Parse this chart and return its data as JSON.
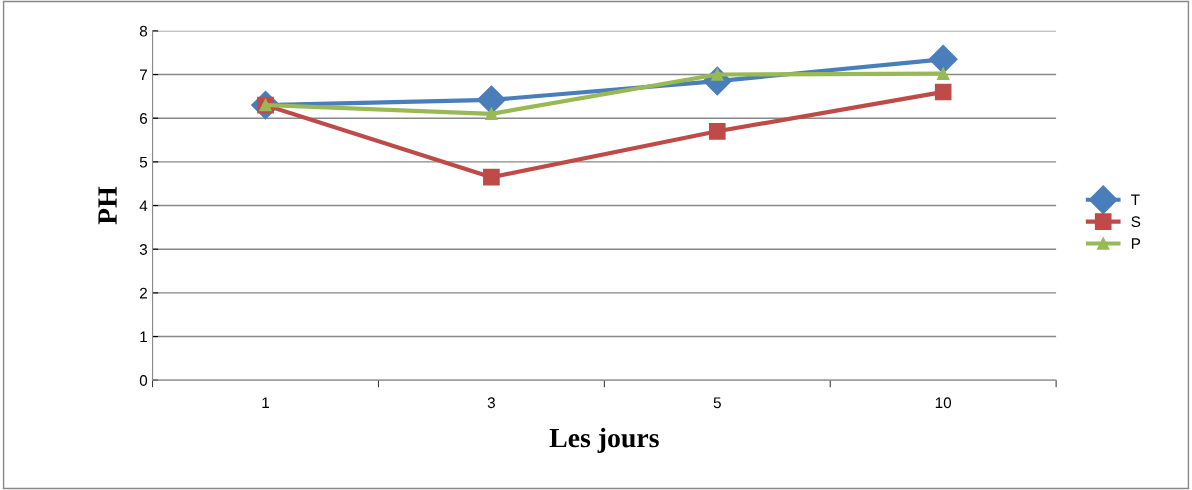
{
  "chart_data": {
    "type": "line",
    "xlabel": "Les jours",
    "ylabel": "PH",
    "categories": [
      "1",
      "3",
      "5",
      "10"
    ],
    "series": [
      {
        "name": "T",
        "color": "#4a7ebb",
        "marker": "diamond",
        "values": [
          6.3,
          6.42,
          6.85,
          7.35
        ]
      },
      {
        "name": "S",
        "color": "#be4b48",
        "marker": "square",
        "values": [
          6.3,
          4.65,
          5.7,
          6.6
        ]
      },
      {
        "name": "P",
        "color": "#98b954",
        "marker": "triangle",
        "values": [
          6.3,
          6.1,
          7.0,
          7.02
        ]
      }
    ],
    "ylim": [
      0,
      8
    ],
    "yticks": [
      0,
      1,
      2,
      3,
      4,
      5,
      6,
      7,
      8
    ],
    "grid": "y",
    "legend": "right",
    "line_style": "solid"
  }
}
